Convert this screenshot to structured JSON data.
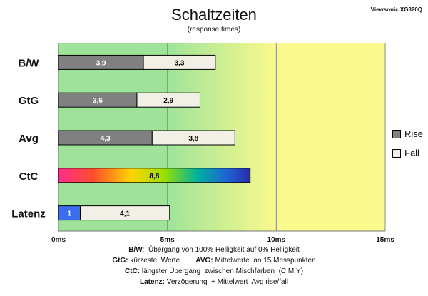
{
  "chart_data": {
    "type": "bar",
    "orientation": "horizontal",
    "stacked": true,
    "title": "Schaltzeiten",
    "subtitle": "(response times)",
    "model": "Viewsonic XG320Q",
    "categories": [
      "B/W",
      "GtG",
      "Avg",
      "CtC",
      "Latenz"
    ],
    "series": [
      {
        "name": "Rise",
        "color": "#808080",
        "values": [
          3.9,
          3.6,
          4.3,
          8.8,
          1
        ],
        "labels": [
          "3,9",
          "3,6",
          "4,3",
          "8,8",
          "1"
        ]
      },
      {
        "name": "Fall",
        "color": "#f2efe6",
        "values": [
          3.3,
          2.9,
          3.8,
          null,
          4.1
        ],
        "labels": [
          "3,3",
          "2,9",
          "3,8",
          "",
          "4,1"
        ]
      }
    ],
    "xlim": [
      0,
      15
    ],
    "xticks": [
      0,
      5,
      10,
      15
    ],
    "xtick_labels": [
      "0ms",
      "5ms",
      "10ms",
      "15ms"
    ],
    "grid": true,
    "legend_position": "right",
    "zones": [
      {
        "from": 0,
        "to": 5,
        "color": "#9fe39a"
      },
      {
        "from": 5,
        "to": 10,
        "color": "#cdeb8a"
      },
      {
        "from": 10,
        "to": 15,
        "color": "#fafa8c"
      }
    ],
    "special_colors": {
      "CtC": "rainbow",
      "Latenz_rise": "#3b6cf0"
    }
  },
  "notes": [
    {
      "parts": [
        {
          "b": "B/W"
        },
        {
          "t": ":  Übergang von 100% Helligkeit auf 0% Helligkeit"
        }
      ]
    },
    {
      "parts": [
        {
          "b": "GtG:"
        },
        {
          "t": " kürzeste  Werte        "
        },
        {
          "b": "AVG:"
        },
        {
          "t": " Mittelwerte  an 15 Messpunkten"
        }
      ]
    },
    {
      "parts": [
        {
          "b": "CtC:"
        },
        {
          "t": " längster Übergang  zwischen Mischfarben  (C,M,Y)"
        }
      ]
    },
    {
      "parts": [
        {
          "b": "Latenz:"
        },
        {
          "t": " Verzögerung  + Mittelwert  Avg rise/fall"
        }
      ]
    }
  ]
}
